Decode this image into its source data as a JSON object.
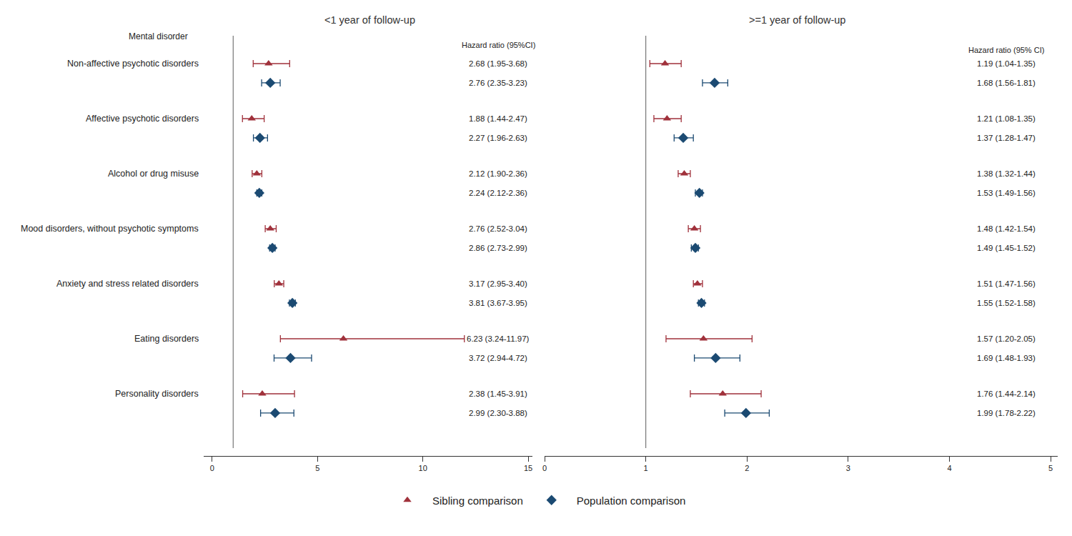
{
  "chart_data": {
    "type": "forest",
    "row_header": "Mental disorder",
    "legend": "bottom",
    "categories": [
      "Non-affective psychotic disorders",
      "Affective psychotic disorders",
      "Alcohol or drug misuse",
      "Mood disorders, without psychotic symptoms",
      "Anxiety and stress related disorders",
      "Eating disorders",
      "Personality disorders"
    ],
    "series": [
      {
        "name": "Sibling comparison",
        "color": "#a0313b",
        "marker": "triangle-up"
      },
      {
        "name": "Population comparison",
        "color": "#1b4a72",
        "marker": "diamond"
      }
    ],
    "panels": [
      {
        "title": "<1 year of follow-up",
        "estimate_header": "Hazard ratio (95%CI)",
        "xlim": [
          -0.4,
          15.2
        ],
        "xticks": [
          0,
          5,
          10,
          15
        ],
        "reference_line": 1,
        "series_values": [
          {
            "values": [
              2.68,
              1.88,
              2.12,
              2.76,
              3.17,
              6.23,
              2.38
            ],
            "lower": [
              1.95,
              1.44,
              1.9,
              2.52,
              2.95,
              3.24,
              1.45
            ],
            "upper": [
              3.68,
              2.47,
              2.36,
              3.04,
              3.4,
              11.97,
              3.91
            ],
            "value_labels": [
              "2.68 (1.95-3.68)",
              "1.88 (1.44-2.47)",
              "2.12 (1.90-2.36)",
              "2.76 (2.52-3.04)",
              "3.17 (2.95-3.40)",
              "6.23 (3.24-11.97)",
              "2.38 (1.45-3.91)"
            ]
          },
          {
            "values": [
              2.76,
              2.27,
              2.24,
              2.86,
              3.81,
              3.72,
              2.99
            ],
            "lower": [
              2.35,
              1.96,
              2.12,
              2.73,
              3.67,
              2.94,
              2.3
            ],
            "upper": [
              3.23,
              2.63,
              2.36,
              2.99,
              3.95,
              4.72,
              3.88
            ],
            "value_labels": [
              "2.76 (2.35-3.23)",
              "2.27 (1.96-2.63)",
              "2.24 (2.12-2.36)",
              "2.86 (2.73-2.99)",
              "3.81 (3.67-3.95)",
              "3.72 (2.94-4.72)",
              "2.99 (2.30-3.88)"
            ]
          }
        ]
      },
      {
        "title": ">=1 year of follow-up",
        "estimate_header": "Hazard ratio (95% CI)",
        "xlim": [
          0,
          5.07
        ],
        "xticks": [
          0,
          1,
          2,
          3,
          4,
          5
        ],
        "reference_line": 1,
        "series_values": [
          {
            "values": [
              1.19,
              1.21,
              1.38,
              1.48,
              1.51,
              1.57,
              1.76
            ],
            "lower": [
              1.04,
              1.08,
              1.32,
              1.42,
              1.47,
              1.2,
              1.44
            ],
            "upper": [
              1.35,
              1.35,
              1.44,
              1.54,
              1.56,
              2.05,
              2.14
            ],
            "value_labels": [
              "1.19 (1.04-1.35)",
              "1.21 (1.08-1.35)",
              "1.38 (1.32-1.44)",
              "1.48 (1.42-1.54)",
              "1.51 (1.47-1.56)",
              "1.57 (1.20-2.05)",
              "1.76 (1.44-2.14)"
            ]
          },
          {
            "values": [
              1.68,
              1.37,
              1.53,
              1.49,
              1.55,
              1.69,
              1.99
            ],
            "lower": [
              1.56,
              1.28,
              1.49,
              1.45,
              1.52,
              1.48,
              1.78
            ],
            "upper": [
              1.81,
              1.47,
              1.56,
              1.52,
              1.58,
              1.93,
              2.22
            ],
            "value_labels": [
              "1.68 (1.56-1.81)",
              "1.37 (1.28-1.47)",
              "1.53 (1.49-1.56)",
              "1.49 (1.45-1.52)",
              "1.55 (1.52-1.58)",
              "1.69 (1.48-1.93)",
              "1.99 (1.78-2.22)"
            ]
          }
        ]
      }
    ]
  }
}
